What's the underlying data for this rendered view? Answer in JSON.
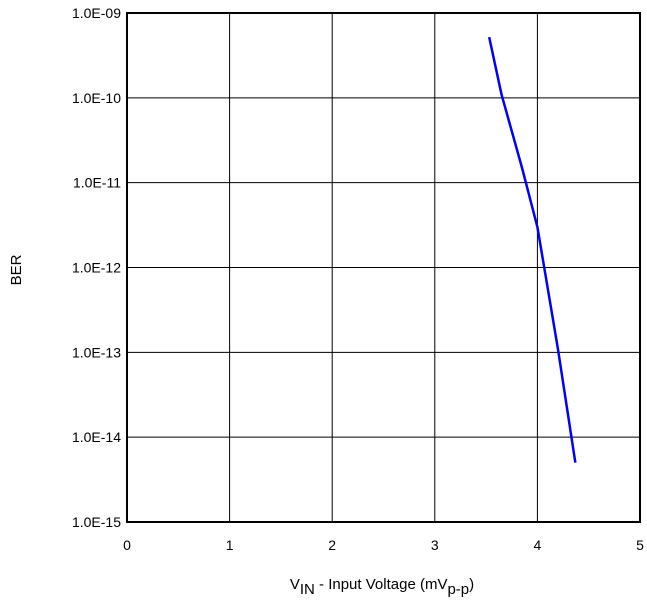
{
  "chart_data": {
    "type": "line",
    "xlabel": {
      "main": "V",
      "main_sub": "IN",
      "mid": " - Input Voltage (mV",
      "unit_sub": "p-p",
      "end": ")"
    },
    "ylabel": "BER",
    "xlim": [
      0,
      5
    ],
    "ylim": [
      1e-15,
      1e-09
    ],
    "y_scale": "log",
    "grid": true,
    "x_ticks": [
      0,
      1,
      2,
      3,
      4,
      5
    ],
    "x_tick_labels": [
      "0",
      "1",
      "2",
      "3",
      "4",
      "5"
    ],
    "y_ticks": [
      1e-15,
      1e-14,
      1e-13,
      1e-12,
      1e-11,
      1e-10,
      1e-09
    ],
    "y_tick_labels": [
      "1.0E-15",
      "1.0E-14",
      "1.0E-13",
      "1.0E-12",
      "1.0E-11",
      "1.0E-10",
      "1.0E-09"
    ],
    "series": [
      {
        "color": "#0000ff",
        "points": [
          [
            3.53,
            5.2e-10
          ],
          [
            3.65,
            1.1e-10
          ],
          [
            3.85,
            1.5e-11
          ],
          [
            4.0,
            3e-12
          ],
          [
            4.08,
            8e-13
          ],
          [
            4.2,
            1.1e-13
          ],
          [
            4.37,
            5e-15
          ]
        ]
      }
    ]
  }
}
